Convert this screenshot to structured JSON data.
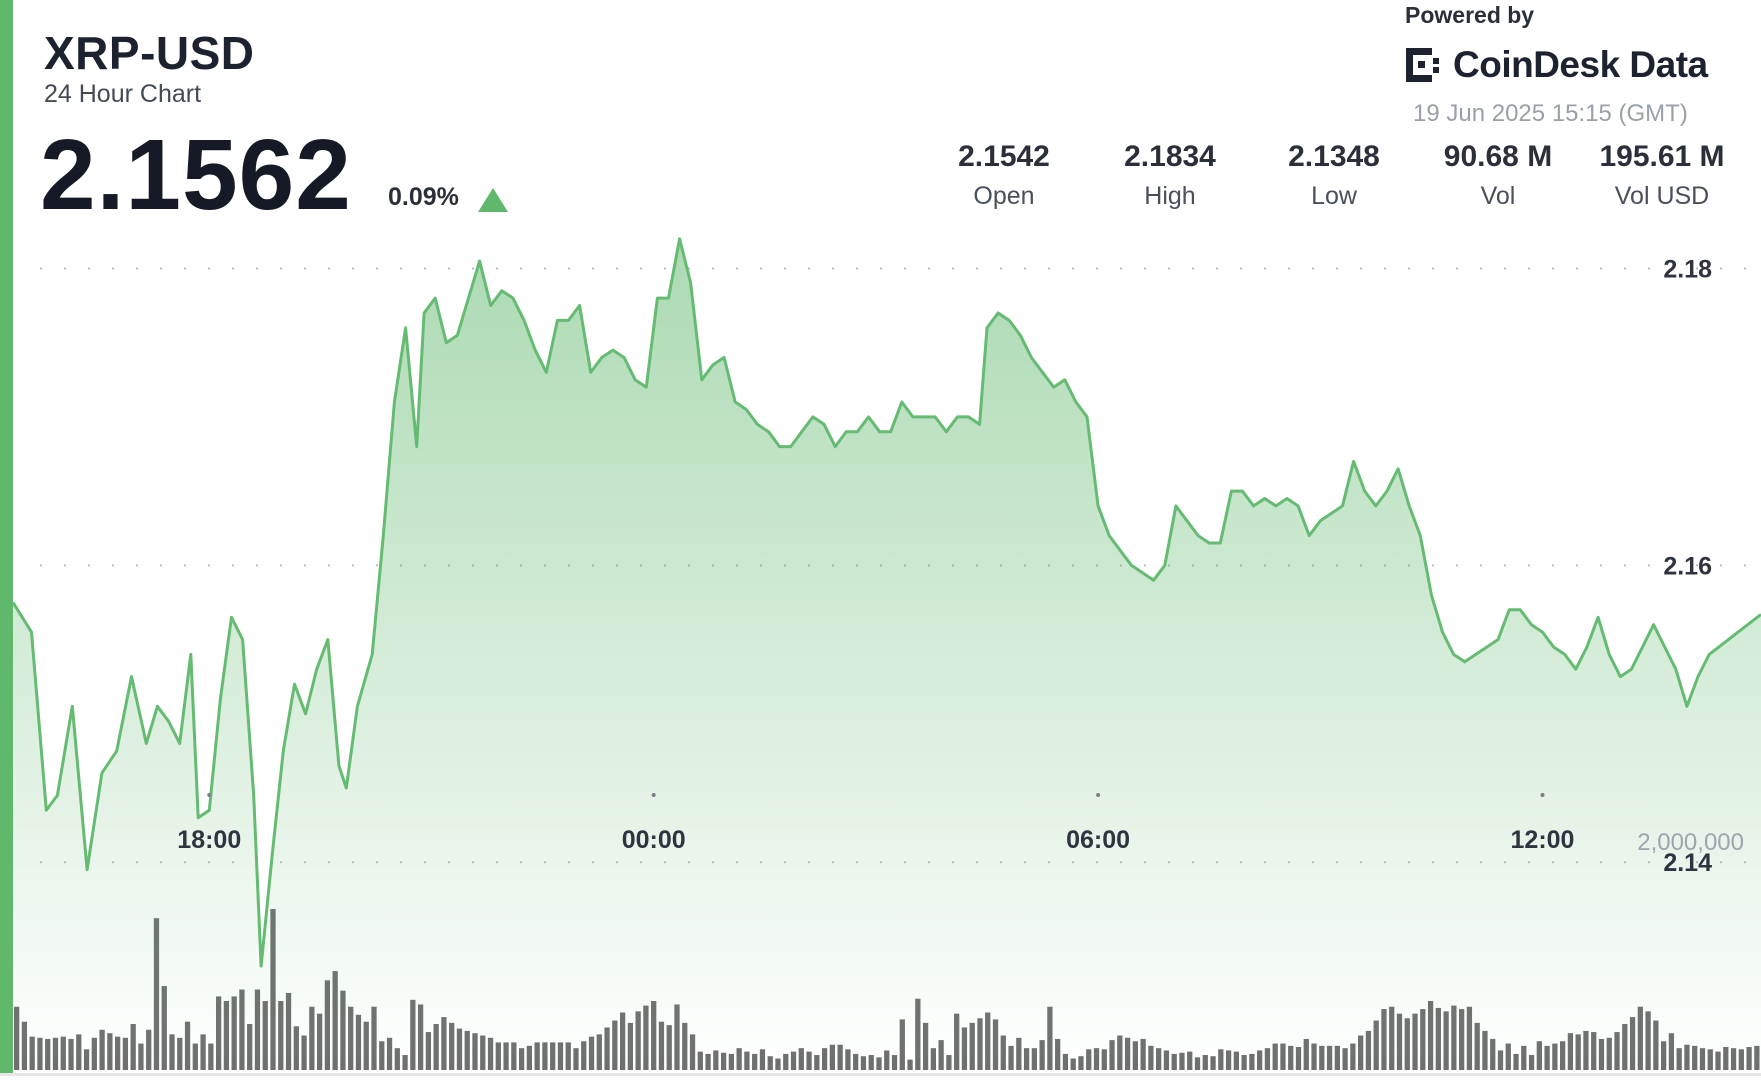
{
  "header": {
    "pair": "XRP-USD",
    "subtitle": "24 Hour Chart",
    "price": "2.1562",
    "change": "0.09%"
  },
  "branding": {
    "powered_by": "Powered by",
    "brand_name": "CoinDesk Data",
    "timestamp": "19 Jun 2025 15:15 (GMT)"
  },
  "stats": [
    {
      "value": "2.1542",
      "label": "Open"
    },
    {
      "value": "2.1834",
      "label": "High"
    },
    {
      "value": "2.1348",
      "label": "Low"
    },
    {
      "value": "90.68 M",
      "label": "Vol"
    },
    {
      "value": "195.61 M",
      "label": "Vol USD"
    }
  ],
  "colors": {
    "accent": "#5fb86c",
    "line": "#66bb73",
    "volume_bar": "#6e7070"
  },
  "chart_data": {
    "type": "area",
    "y_ticks": [
      2.18,
      2.16,
      2.14
    ],
    "ylim": [
      2.126,
      2.19
    ],
    "x_ticks": [
      "18:00",
      "00:00",
      "06:00",
      "12:00"
    ],
    "x_tick_hours": [
      2.65,
      8.65,
      14.65,
      20.65
    ],
    "xlim_hours": [
      0,
      23.6
    ],
    "grid": "dotted horizontal",
    "price_series": [
      [
        0.0,
        2.1575
      ],
      [
        0.25,
        2.1555
      ],
      [
        0.45,
        2.1435
      ],
      [
        0.6,
        2.1445
      ],
      [
        0.8,
        2.1505
      ],
      [
        1.0,
        2.1395
      ],
      [
        1.2,
        2.146
      ],
      [
        1.4,
        2.1475
      ],
      [
        1.6,
        2.1525
      ],
      [
        1.8,
        2.148
      ],
      [
        1.95,
        2.1505
      ],
      [
        2.1,
        2.1495
      ],
      [
        2.25,
        2.148
      ],
      [
        2.4,
        2.154
      ],
      [
        2.5,
        2.143
      ],
      [
        2.65,
        2.1435
      ],
      [
        2.8,
        2.151
      ],
      [
        2.95,
        2.1565
      ],
      [
        3.1,
        2.155
      ],
      [
        3.25,
        2.1445
      ],
      [
        3.35,
        2.133
      ],
      [
        3.5,
        2.1405
      ],
      [
        3.65,
        2.1475
      ],
      [
        3.8,
        2.152
      ],
      [
        3.95,
        2.15
      ],
      [
        4.1,
        2.153
      ],
      [
        4.25,
        2.155
      ],
      [
        4.4,
        2.1465
      ],
      [
        4.5,
        2.145
      ],
      [
        4.65,
        2.1505
      ],
      [
        4.85,
        2.154
      ],
      [
        5.0,
        2.162
      ],
      [
        5.15,
        2.171
      ],
      [
        5.3,
        2.176
      ],
      [
        5.45,
        2.168
      ],
      [
        5.55,
        2.177
      ],
      [
        5.7,
        2.178
      ],
      [
        5.85,
        2.175
      ],
      [
        6.0,
        2.1755
      ],
      [
        6.15,
        2.178
      ],
      [
        6.3,
        2.1805
      ],
      [
        6.45,
        2.1775
      ],
      [
        6.6,
        2.1785
      ],
      [
        6.75,
        2.178
      ],
      [
        6.9,
        2.1765
      ],
      [
        7.05,
        2.1745
      ],
      [
        7.2,
        2.173
      ],
      [
        7.35,
        2.1765
      ],
      [
        7.5,
        2.1765
      ],
      [
        7.65,
        2.1775
      ],
      [
        7.8,
        2.173
      ],
      [
        7.95,
        2.174
      ],
      [
        8.1,
        2.1745
      ],
      [
        8.25,
        2.174
      ],
      [
        8.4,
        2.1725
      ],
      [
        8.55,
        2.172
      ],
      [
        8.7,
        2.178
      ],
      [
        8.85,
        2.178
      ],
      [
        9.0,
        2.182
      ],
      [
        9.15,
        2.179
      ],
      [
        9.3,
        2.1725
      ],
      [
        9.45,
        2.1735
      ],
      [
        9.6,
        2.174
      ],
      [
        9.75,
        2.171
      ],
      [
        9.9,
        2.1705
      ],
      [
        10.05,
        2.1695
      ],
      [
        10.2,
        2.169
      ],
      [
        10.35,
        2.168
      ],
      [
        10.5,
        2.168
      ],
      [
        10.65,
        2.169
      ],
      [
        10.8,
        2.17
      ],
      [
        10.95,
        2.1695
      ],
      [
        11.1,
        2.168
      ],
      [
        11.25,
        2.169
      ],
      [
        11.4,
        2.169
      ],
      [
        11.55,
        2.17
      ],
      [
        11.7,
        2.169
      ],
      [
        11.85,
        2.169
      ],
      [
        12.0,
        2.171
      ],
      [
        12.15,
        2.17
      ],
      [
        12.3,
        2.17
      ],
      [
        12.45,
        2.17
      ],
      [
        12.6,
        2.169
      ],
      [
        12.75,
        2.17
      ],
      [
        12.9,
        2.17
      ],
      [
        13.05,
        2.1695
      ],
      [
        13.15,
        2.176
      ],
      [
        13.3,
        2.177
      ],
      [
        13.45,
        2.1765
      ],
      [
        13.6,
        2.1755
      ],
      [
        13.75,
        2.174
      ],
      [
        13.9,
        2.173
      ],
      [
        14.05,
        2.172
      ],
      [
        14.2,
        2.1725
      ],
      [
        14.35,
        2.171
      ],
      [
        14.5,
        2.17
      ],
      [
        14.65,
        2.164
      ],
      [
        14.8,
        2.162
      ],
      [
        14.95,
        2.161
      ],
      [
        15.1,
        2.16
      ],
      [
        15.25,
        2.1595
      ],
      [
        15.4,
        2.159
      ],
      [
        15.55,
        2.16
      ],
      [
        15.7,
        2.164
      ],
      [
        15.85,
        2.163
      ],
      [
        16.0,
        2.162
      ],
      [
        16.15,
        2.1615
      ],
      [
        16.3,
        2.1615
      ],
      [
        16.45,
        2.165
      ],
      [
        16.6,
        2.165
      ],
      [
        16.75,
        2.164
      ],
      [
        16.9,
        2.1645
      ],
      [
        17.05,
        2.164
      ],
      [
        17.2,
        2.1645
      ],
      [
        17.35,
        2.164
      ],
      [
        17.5,
        2.162
      ],
      [
        17.65,
        2.163
      ],
      [
        17.8,
        2.1635
      ],
      [
        17.95,
        2.164
      ],
      [
        18.1,
        2.167
      ],
      [
        18.25,
        2.165
      ],
      [
        18.4,
        2.164
      ],
      [
        18.55,
        2.165
      ],
      [
        18.7,
        2.1665
      ],
      [
        18.85,
        2.164
      ],
      [
        19.0,
        2.162
      ],
      [
        19.15,
        2.158
      ],
      [
        19.3,
        2.1555
      ],
      [
        19.45,
        2.154
      ],
      [
        19.6,
        2.1535
      ],
      [
        19.75,
        2.154
      ],
      [
        19.9,
        2.1545
      ],
      [
        20.05,
        2.155
      ],
      [
        20.2,
        2.157
      ],
      [
        20.35,
        2.157
      ],
      [
        20.5,
        2.156
      ],
      [
        20.65,
        2.1555
      ],
      [
        20.8,
        2.1545
      ],
      [
        20.95,
        2.154
      ],
      [
        21.1,
        2.153
      ],
      [
        21.25,
        2.1545
      ],
      [
        21.4,
        2.1565
      ],
      [
        21.55,
        2.154
      ],
      [
        21.7,
        2.1525
      ],
      [
        21.85,
        2.153
      ],
      [
        22.0,
        2.1545
      ],
      [
        22.15,
        2.156
      ],
      [
        22.3,
        2.1545
      ],
      [
        22.45,
        2.153
      ],
      [
        22.6,
        2.1505
      ],
      [
        22.75,
        2.1525
      ],
      [
        22.9,
        2.154
      ]
    ],
    "volume_label": "2,000,000",
    "volume_ylim": [
      0,
      2700000
    ],
    "volume_series": [
      0.55,
      0.42,
      0.29,
      0.28,
      0.27,
      0.28,
      0.29,
      0.27,
      0.31,
      0.18,
      0.28,
      0.35,
      0.32,
      0.29,
      0.28,
      0.4,
      0.23,
      0.35,
      1.32,
      0.73,
      0.31,
      0.28,
      0.42,
      0.23,
      0.31,
      0.23,
      0.64,
      0.6,
      0.64,
      0.7,
      0.4,
      0.7,
      0.6,
      1.4,
      0.6,
      0.67,
      0.38,
      0.3,
      0.55,
      0.49,
      0.78,
      0.86,
      0.69,
      0.55,
      0.48,
      0.42,
      0.55,
      0.25,
      0.28,
      0.19,
      0.13,
      0.61,
      0.57,
      0.33,
      0.4,
      0.46,
      0.41,
      0.36,
      0.34,
      0.32,
      0.3,
      0.28,
      0.24,
      0.24,
      0.24,
      0.19,
      0.21,
      0.24,
      0.24,
      0.24,
      0.24,
      0.24,
      0.19,
      0.25,
      0.29,
      0.31,
      0.37,
      0.43,
      0.5,
      0.41,
      0.51,
      0.56,
      0.6,
      0.42,
      0.39,
      0.57,
      0.41,
      0.31,
      0.16,
      0.14,
      0.17,
      0.15,
      0.14,
      0.19,
      0.16,
      0.14,
      0.18,
      0.12,
      0.1,
      0.14,
      0.16,
      0.19,
      0.16,
      0.13,
      0.19,
      0.22,
      0.22,
      0.18,
      0.14,
      0.12,
      0.13,
      0.11,
      0.17,
      0.13,
      0.44,
      0.09,
      0.62,
      0.41,
      0.19,
      0.26,
      0.13,
      0.49,
      0.37,
      0.41,
      0.45,
      0.5,
      0.44,
      0.3,
      0.21,
      0.28,
      0.19,
      0.19,
      0.26,
      0.55,
      0.27,
      0.14,
      0.1,
      0.12,
      0.18,
      0.19,
      0.18,
      0.26,
      0.3,
      0.28,
      0.25,
      0.27,
      0.21,
      0.19,
      0.17,
      0.14,
      0.15,
      0.16,
      0.11,
      0.13,
      0.12,
      0.18,
      0.17,
      0.16,
      0.13,
      0.14,
      0.17,
      0.19,
      0.23,
      0.23,
      0.21,
      0.2,
      0.27,
      0.23,
      0.21,
      0.21,
      0.21,
      0.19,
      0.23,
      0.3,
      0.34,
      0.43,
      0.53,
      0.55,
      0.49,
      0.45,
      0.49,
      0.53,
      0.6,
      0.54,
      0.51,
      0.56,
      0.53,
      0.55,
      0.41,
      0.34,
      0.27,
      0.17,
      0.23,
      0.14,
      0.21,
      0.13,
      0.25,
      0.21,
      0.23,
      0.25,
      0.32,
      0.31,
      0.34,
      0.33,
      0.27,
      0.28,
      0.33,
      0.4,
      0.46,
      0.55,
      0.51,
      0.43,
      0.25,
      0.32,
      0.19,
      0.22,
      0.21,
      0.19,
      0.18,
      0.16,
      0.2,
      0.19,
      0.18,
      0.2,
      0.21
    ]
  }
}
